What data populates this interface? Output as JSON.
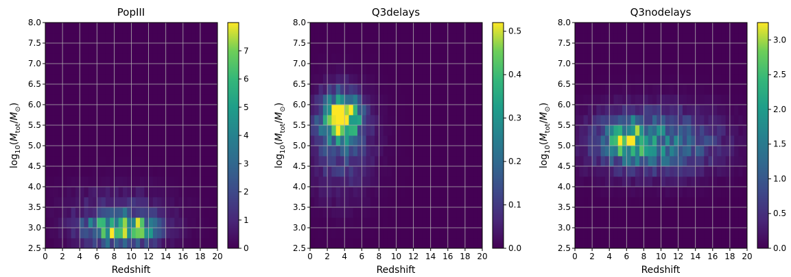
{
  "chart_data": [
    {
      "type": "heatmap",
      "title": "PopIII",
      "xlabel": "Redshift",
      "ylabel": "log₁₀(M_tot/M_⊙)",
      "xlim": [
        0,
        20
      ],
      "ylim": [
        2.5,
        8.0
      ],
      "xticks": [
        0,
        2,
        4,
        6,
        8,
        10,
        12,
        14,
        16,
        18,
        20
      ],
      "yticks": [
        2.5,
        3.0,
        3.5,
        4.0,
        4.5,
        5.0,
        5.5,
        6.0,
        6.5,
        7.0,
        7.5,
        8.0
      ],
      "grid": true,
      "colormap": "viridis",
      "colorbar": {
        "min": 0,
        "max": 8,
        "ticks": [
          0,
          1,
          2,
          3,
          4,
          5,
          6,
          7
        ]
      },
      "blobs": [
        {
          "z": 9.0,
          "logM": 2.95,
          "sigma_z": 2.6,
          "sigma_logM": 0.22,
          "peak": 7.6
        },
        {
          "z": 8.5,
          "logM": 3.3,
          "sigma_z": 4.0,
          "sigma_logM": 0.45,
          "peak": 1.4
        }
      ]
    },
    {
      "type": "heatmap",
      "title": "Q3delays",
      "xlabel": "Redshift",
      "ylabel": "log₁₀(M_tot/M_⊙)",
      "xlim": [
        0,
        20
      ],
      "ylim": [
        2.5,
        8.0
      ],
      "xticks": [
        0,
        2,
        4,
        6,
        8,
        10,
        12,
        14,
        16,
        18,
        20
      ],
      "yticks": [
        2.5,
        3.0,
        3.5,
        4.0,
        4.5,
        5.0,
        5.5,
        6.0,
        6.5,
        7.0,
        7.5,
        8.0
      ],
      "grid": true,
      "colormap": "viridis",
      "colorbar": {
        "min": 0,
        "max": 0.52,
        "ticks": [
          0.0,
          0.1,
          0.2,
          0.3,
          0.4,
          0.5
        ]
      },
      "blobs": [
        {
          "z": 3.6,
          "logM": 5.7,
          "sigma_z": 1.5,
          "sigma_logM": 0.38,
          "peak": 0.5
        },
        {
          "z": 3.5,
          "logM": 5.0,
          "sigma_z": 2.5,
          "sigma_logM": 0.8,
          "peak": 0.12
        }
      ]
    },
    {
      "type": "heatmap",
      "title": "Q3nodelays",
      "xlabel": "Redshift",
      "ylabel": "log₁₀(M_tot/M_⊙)",
      "xlim": [
        0,
        20
      ],
      "ylim": [
        2.5,
        8.0
      ],
      "xticks": [
        0,
        2,
        4,
        6,
        8,
        10,
        12,
        14,
        16,
        18,
        20
      ],
      "yticks": [
        2.5,
        3.0,
        3.5,
        4.0,
        4.5,
        5.0,
        5.5,
        6.0,
        6.5,
        7.0,
        7.5,
        8.0
      ],
      "grid": true,
      "colormap": "viridis",
      "colorbar": {
        "min": 0,
        "max": 3.25,
        "ticks": [
          0.0,
          0.5,
          1.0,
          1.5,
          2.0,
          2.5,
          3.0
        ]
      },
      "blobs": [
        {
          "z": 6.0,
          "logM": 5.15,
          "sigma_z": 1.4,
          "sigma_logM": 0.3,
          "peak": 1.8
        },
        {
          "z": 9.0,
          "logM": 5.1,
          "sigma_z": 4.8,
          "sigma_logM": 0.5,
          "peak": 1.6
        }
      ]
    }
  ]
}
